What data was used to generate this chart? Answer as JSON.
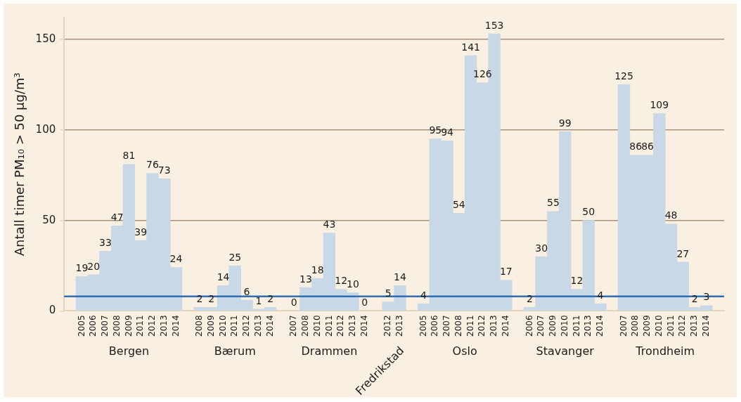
{
  "chart_data": {
    "type": "bar",
    "ylabel": "Antall timer PM₁₀ > 50 µg/m³",
    "categories": [
      null,
      "2005",
      "2006",
      "2007",
      "2008",
      "2009",
      "2011",
      "2012",
      "2013",
      "2014",
      null,
      "2008",
      "2009",
      "2010",
      "2011",
      "2012",
      "2013",
      "2014",
      null,
      "2007",
      "2008",
      "2010",
      "2011",
      "2012",
      "2013",
      "2014",
      null,
      "2012",
      "2013",
      null,
      "2005",
      "2006",
      "2007",
      "2008",
      "2011",
      "2012",
      "2013",
      "2014",
      null,
      "2006",
      "2007",
      "2009",
      "2010",
      "2011",
      "2013",
      "2014",
      null,
      "2007",
      "2008",
      "2009",
      "2010",
      "2011",
      "2012",
      "2013",
      "2014",
      null
    ],
    "values": [
      null,
      19,
      20,
      33,
      47,
      81,
      39,
      76,
      73,
      24,
      null,
      2,
      2,
      14,
      25,
      6,
      1,
      2,
      null,
      0,
      13,
      18,
      43,
      12,
      10,
      0,
      null,
      5,
      14,
      null,
      4,
      95,
      94,
      54,
      141,
      126,
      153,
      17,
      null,
      2,
      30,
      55,
      99,
      12,
      50,
      4,
      null,
      125,
      86,
      86,
      109,
      48,
      27,
      2,
      3,
      null
    ],
    "color": "#c9d8e6",
    "ylim": [
      0,
      162
    ],
    "yticks": [
      0,
      50,
      100,
      150
    ],
    "grid": "y",
    "data_labels": true,
    "ref_lines": [
      {
        "axis": "y",
        "value": 8,
        "color": "#2f6db5"
      }
    ],
    "annotations": [
      "Bergen",
      "Bærum",
      "Drammen",
      "Fredrikstad",
      "Oslo",
      "Stavanger",
      "Trondheim"
    ]
  }
}
